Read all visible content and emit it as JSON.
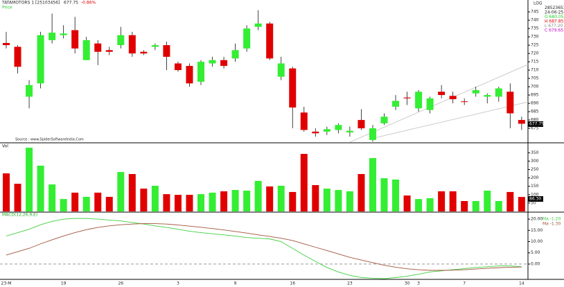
{
  "header": {
    "symbol": "TATAMOTORS 1 [25103456]",
    "price": "677.75",
    "change": "-0.86%",
    "sub": "Price",
    "source": "Source : www.SpiderSoftwareIndia.Com",
    "right": [
      "LOG",
      "28523653.00",
      "24-06-25 Tu",
      "O  680.05",
      "H  687.85",
      "L  677.20",
      "C  679.65"
    ]
  },
  "chart_data": [
    {
      "type": "candlestick",
      "up_color": "#33ee33",
      "down_color": "#e00000",
      "open": [
        726.3,
        724,
        694,
        702,
        728,
        731,
        734,
        716,
        726,
        722,
        725,
        731,
        721,
        724,
        725,
        714,
        712.5,
        703,
        714,
        716,
        717,
        723,
        736,
        738,
        706,
        711,
        684.5,
        673,
        673,
        674,
        672.5,
        680,
        668,
        678,
        688,
        693.5,
        687,
        686,
        697,
        694.5,
        691.2,
        696,
        694,
        694,
        697,
        680
      ],
      "high": [
        733,
        725,
        704,
        733,
        744,
        737,
        742,
        730,
        728,
        724,
        736,
        733,
        722,
        726,
        727,
        715,
        714,
        716,
        718,
        718,
        726,
        737,
        746,
        739,
        718,
        712,
        688,
        675,
        676,
        678,
        676,
        686.5,
        677,
        684,
        695,
        697,
        698,
        694,
        701,
        697,
        693,
        700,
        696,
        700,
        702,
        682
      ],
      "low": [
        723,
        708,
        687,
        699,
        726,
        729,
        720,
        716,
        713,
        719,
        723,
        718,
        719,
        722,
        710,
        709,
        700,
        701,
        712,
        711,
        715,
        721,
        734,
        716,
        704,
        675,
        673,
        670,
        671,
        672,
        670,
        674,
        667,
        677,
        686,
        689,
        685,
        684,
        693,
        690,
        689,
        694,
        690,
        691,
        675,
        674
      ],
      "close": [
        725,
        712,
        701,
        731,
        732.5,
        732,
        723,
        728,
        721,
        721,
        731,
        720,
        720,
        725,
        718,
        710,
        702,
        715,
        716,
        712.5,
        722,
        735,
        738,
        717,
        714,
        687.5,
        674,
        672,
        674.5,
        677,
        673.5,
        675,
        675,
        682,
        691.5,
        693,
        697,
        693,
        695,
        692.5,
        691,
        698,
        695,
        699,
        684,
        677.75
      ],
      "ylim": [
        666.7,
        748.8
      ],
      "yticks": [
        675,
        680,
        685,
        690,
        695,
        700,
        705,
        710,
        715,
        720,
        725,
        730,
        735,
        740,
        745
      ]
    },
    {
      "type": "bar",
      "label": "Vol",
      "up_color": "#33ee33",
      "down_color": "#e00000",
      "values": [
        227,
        165,
        380,
        273,
        161,
        74,
        112,
        87,
        112,
        87,
        235,
        223,
        136,
        153,
        103,
        99,
        99,
        103,
        112,
        120,
        128,
        124,
        182,
        149,
        153,
        116,
        343,
        157,
        136,
        128,
        120,
        223,
        318,
        198,
        190,
        95,
        74,
        79,
        120,
        120,
        62,
        62,
        124,
        62,
        116,
        86.3
      ],
      "last_value_label": "86.30",
      "ylim": [
        0,
        405
      ],
      "yticks": [
        50,
        100,
        150,
        200,
        250,
        300,
        350
      ]
    },
    {
      "type": "line",
      "label": "MACD(12,26,9,E)",
      "categories": [
        "23-M",
        null,
        null,
        null,
        null,
        "19",
        null,
        null,
        null,
        null,
        "26",
        null,
        null,
        null,
        null,
        "3",
        null,
        null,
        null,
        null,
        "9",
        null,
        null,
        null,
        null,
        "16",
        null,
        null,
        null,
        null,
        "23",
        null,
        null,
        null,
        null,
        "30",
        "3",
        null,
        null,
        null,
        "7",
        null,
        null,
        null,
        null,
        "14"
      ],
      "series": [
        {
          "name": "Ma -1.20",
          "color": "#3ecf3e",
          "values": [
            12.5,
            14,
            15.5,
            17.5,
            19,
            20,
            20.3,
            20.3,
            20,
            19.6,
            19.2,
            18.5,
            17.8,
            17,
            16.3,
            15.5,
            14.6,
            14,
            13.5,
            13,
            12.5,
            11.8,
            11.5,
            11.2,
            10,
            7,
            4,
            1.2,
            -1.5,
            -3.5,
            -5,
            -6,
            -6.3,
            -6.5,
            -6,
            -5.4,
            -4.5,
            -3.5,
            -3,
            -2.5,
            -2,
            -1.5,
            -1.2,
            -0.8,
            -0.8,
            -1.2
          ]
        },
        {
          "name": "Ma -1.30",
          "color": "#a0523a",
          "values": [
            4,
            5.5,
            7,
            9,
            10.8,
            12.5,
            14,
            15.3,
            16.3,
            17,
            17.5,
            17.8,
            18,
            18,
            17.8,
            17.4,
            16.9,
            16.4,
            15.8,
            15.2,
            14.5,
            13.8,
            13,
            12.3,
            11.5,
            10.5,
            9,
            7.5,
            6,
            4.5,
            3,
            1.8,
            0.6,
            -0.5,
            -1.4,
            -2.1,
            -2.5,
            -2.8,
            -2.8,
            -2.7,
            -2.5,
            -2.2,
            -1.9,
            -1.6,
            -1.4,
            -1.3
          ]
        }
      ],
      "ylim": [
        -6.5,
        22.5
      ],
      "yticks": [
        {
          "value": 0,
          "label": "0.00"
        },
        {
          "value": 5,
          "label": "5.00"
        },
        {
          "value": 10,
          "label": "10.00"
        },
        {
          "value": 15,
          "label": "15.00"
        },
        {
          "value": 20,
          "label": "20.00"
        }
      ]
    }
  ]
}
